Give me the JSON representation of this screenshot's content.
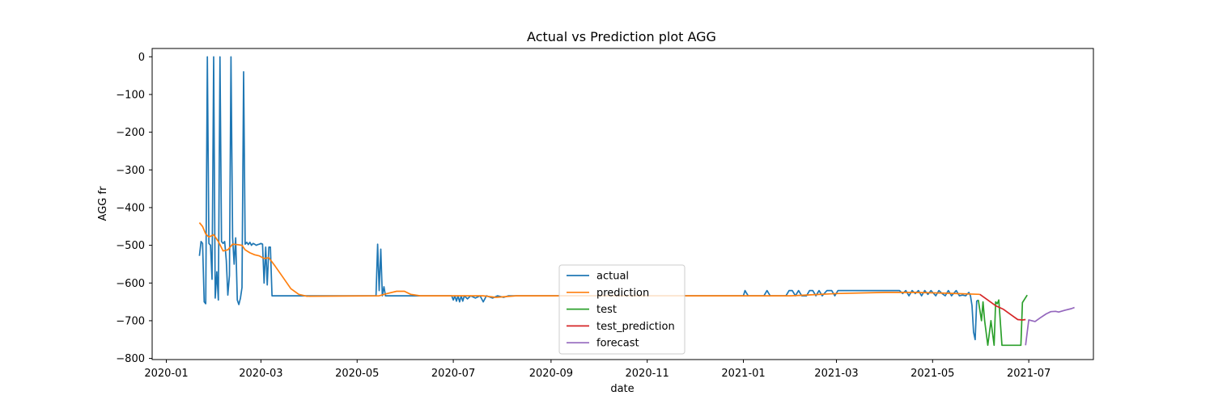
{
  "chart_data": {
    "type": "line",
    "title": "Actual vs Prediction plot AGG",
    "xlabel": "date",
    "ylabel": "AGG fr",
    "xlim": [
      "2019-12-23",
      "2021-08-11"
    ],
    "ylim": [
      -803,
      22
    ],
    "x_ticks": [
      "2020-01",
      "2020-03",
      "2020-05",
      "2020-07",
      "2020-09",
      "2020-11",
      "2021-01",
      "2021-03",
      "2021-05",
      "2021-07"
    ],
    "y_ticks": [
      0,
      -100,
      -200,
      -300,
      -400,
      -500,
      -600,
      -700,
      -800
    ],
    "y_tick_labels": [
      "0",
      "−100",
      "−200",
      "−300",
      "−400",
      "−500",
      "−600",
      "−700",
      "−800"
    ],
    "legend_position": "lower center",
    "series": [
      {
        "name": "actual",
        "color": "#1f77b4",
        "points": [
          [
            "2020-01-22",
            -528
          ],
          [
            "2020-01-23",
            -490
          ],
          [
            "2020-01-24",
            -495
          ],
          [
            "2020-01-25",
            -650
          ],
          [
            "2020-01-26",
            -655
          ],
          [
            "2020-01-27",
            0
          ],
          [
            "2020-01-28",
            -495
          ],
          [
            "2020-01-29",
            -500
          ],
          [
            "2020-01-30",
            -590
          ],
          [
            "2020-01-31",
            0
          ],
          [
            "2020-02-01",
            -640
          ],
          [
            "2020-02-02",
            -570
          ],
          [
            "2020-02-03",
            -645
          ],
          [
            "2020-02-04",
            0
          ],
          [
            "2020-02-05",
            -490
          ],
          [
            "2020-02-06",
            -495
          ],
          [
            "2020-02-07",
            -490
          ],
          [
            "2020-02-08",
            -540
          ],
          [
            "2020-02-09",
            -632
          ],
          [
            "2020-02-10",
            -580
          ],
          [
            "2020-02-11",
            0
          ],
          [
            "2020-02-12",
            -480
          ],
          [
            "2020-02-13",
            -550
          ],
          [
            "2020-02-14",
            -480
          ],
          [
            "2020-02-15",
            -645
          ],
          [
            "2020-02-16",
            -657
          ],
          [
            "2020-02-17",
            -640
          ],
          [
            "2020-02-18",
            -612
          ],
          [
            "2020-02-19",
            -40
          ],
          [
            "2020-02-20",
            -497
          ],
          [
            "2020-02-21",
            -492
          ],
          [
            "2020-02-22",
            -498
          ],
          [
            "2020-02-23",
            -492
          ],
          [
            "2020-02-24",
            -500
          ],
          [
            "2020-02-25",
            -495
          ],
          [
            "2020-02-26",
            -497
          ],
          [
            "2020-02-27",
            -500
          ],
          [
            "2020-02-28",
            -498
          ],
          [
            "2020-02-29",
            -497
          ],
          [
            "2020-03-01",
            -495
          ],
          [
            "2020-03-02",
            -497
          ],
          [
            "2020-03-03",
            -600
          ],
          [
            "2020-03-04",
            -505
          ],
          [
            "2020-03-05",
            -605
          ],
          [
            "2020-03-06",
            -505
          ],
          [
            "2020-03-07",
            -505
          ],
          [
            "2020-03-08",
            -634
          ],
          [
            "2020-05-13",
            -634
          ],
          [
            "2020-05-14",
            -497
          ],
          [
            "2020-05-15",
            -620
          ],
          [
            "2020-05-16",
            -510
          ],
          [
            "2020-05-17",
            -634
          ],
          [
            "2020-05-18",
            -610
          ],
          [
            "2020-05-19",
            -634
          ],
          [
            "2020-06-30",
            -634
          ],
          [
            "2020-07-01",
            -645
          ],
          [
            "2020-07-02",
            -634
          ],
          [
            "2020-07-03",
            -648
          ],
          [
            "2020-07-04",
            -634
          ],
          [
            "2020-07-05",
            -650
          ],
          [
            "2020-07-06",
            -634
          ],
          [
            "2020-07-07",
            -648
          ],
          [
            "2020-07-08",
            -634
          ],
          [
            "2020-07-10",
            -642
          ],
          [
            "2020-07-12",
            -634
          ],
          [
            "2020-07-15",
            -640
          ],
          [
            "2020-07-18",
            -634
          ],
          [
            "2020-07-20",
            -650
          ],
          [
            "2020-07-22",
            -634
          ],
          [
            "2020-07-26",
            -640
          ],
          [
            "2020-07-29",
            -634
          ],
          [
            "2020-08-02",
            -638
          ],
          [
            "2020-08-05",
            -634
          ],
          [
            "2021-01-01",
            -634
          ],
          [
            "2021-01-02",
            -620
          ],
          [
            "2021-01-04",
            -634
          ],
          [
            "2021-01-14",
            -634
          ],
          [
            "2021-01-16",
            -620
          ],
          [
            "2021-01-18",
            -634
          ],
          [
            "2021-01-28",
            -634
          ],
          [
            "2021-01-30",
            -620
          ],
          [
            "2021-02-01",
            -620
          ],
          [
            "2021-02-03",
            -634
          ],
          [
            "2021-02-05",
            -620
          ],
          [
            "2021-02-07",
            -634
          ],
          [
            "2021-02-10",
            -634
          ],
          [
            "2021-02-12",
            -620
          ],
          [
            "2021-02-14",
            -620
          ],
          [
            "2021-02-16",
            -634
          ],
          [
            "2021-02-18",
            -620
          ],
          [
            "2021-02-20",
            -634
          ],
          [
            "2021-02-23",
            -620
          ],
          [
            "2021-02-26",
            -620
          ],
          [
            "2021-02-28",
            -634
          ],
          [
            "2021-03-02",
            -620
          ],
          [
            "2021-03-05",
            -620
          ],
          [
            "2021-04-10",
            -620
          ],
          [
            "2021-04-12",
            -628
          ],
          [
            "2021-04-14",
            -620
          ],
          [
            "2021-04-16",
            -634
          ],
          [
            "2021-04-18",
            -620
          ],
          [
            "2021-04-20",
            -628
          ],
          [
            "2021-04-22",
            -620
          ],
          [
            "2021-04-24",
            -634
          ],
          [
            "2021-04-26",
            -620
          ],
          [
            "2021-04-28",
            -630
          ],
          [
            "2021-04-30",
            -620
          ],
          [
            "2021-05-03",
            -634
          ],
          [
            "2021-05-05",
            -620
          ],
          [
            "2021-05-07",
            -628
          ],
          [
            "2021-05-09",
            -634
          ],
          [
            "2021-05-11",
            -620
          ],
          [
            "2021-05-13",
            -634
          ],
          [
            "2021-05-16",
            -620
          ],
          [
            "2021-05-18",
            -634
          ],
          [
            "2021-05-20",
            -632
          ],
          [
            "2021-05-22",
            -634
          ],
          [
            "2021-05-24",
            -625
          ],
          [
            "2021-05-25",
            -634
          ],
          [
            "2021-05-26",
            -660
          ],
          [
            "2021-05-27",
            -730
          ],
          [
            "2021-05-28",
            -750
          ],
          [
            "2021-05-29",
            -648
          ],
          [
            "2021-05-30",
            -645
          ]
        ]
      },
      {
        "name": "prediction",
        "color": "#ff7f0e",
        "points": [
          [
            "2020-01-22",
            -440
          ],
          [
            "2020-01-24",
            -450
          ],
          [
            "2020-01-26",
            -470
          ],
          [
            "2020-01-28",
            -478
          ],
          [
            "2020-01-31",
            -472
          ],
          [
            "2020-02-03",
            -490
          ],
          [
            "2020-02-06",
            -515
          ],
          [
            "2020-02-09",
            -512
          ],
          [
            "2020-02-12",
            -497
          ],
          [
            "2020-02-15",
            -498
          ],
          [
            "2020-02-18",
            -500
          ],
          [
            "2020-02-20",
            -512
          ],
          [
            "2020-02-23",
            -520
          ],
          [
            "2020-02-26",
            -525
          ],
          [
            "2020-02-29",
            -528
          ],
          [
            "2020-03-03",
            -535
          ],
          [
            "2020-03-06",
            -533
          ],
          [
            "2020-03-10",
            -555
          ],
          [
            "2020-03-15",
            -585
          ],
          [
            "2020-03-20",
            -615
          ],
          [
            "2020-03-25",
            -630
          ],
          [
            "2020-03-30",
            -635
          ],
          [
            "2020-05-15",
            -634
          ],
          [
            "2020-05-20",
            -628
          ],
          [
            "2020-05-26",
            -622
          ],
          [
            "2020-05-31",
            -622
          ],
          [
            "2020-06-04",
            -630
          ],
          [
            "2020-06-10",
            -634
          ],
          [
            "2020-07-20",
            -634
          ],
          [
            "2020-07-28",
            -638
          ],
          [
            "2020-08-10",
            -634
          ],
          [
            "2021-01-31",
            -634
          ],
          [
            "2021-03-01",
            -628
          ],
          [
            "2021-04-01",
            -625
          ],
          [
            "2021-04-20",
            -625
          ],
          [
            "2021-05-10",
            -627
          ],
          [
            "2021-05-31",
            -630
          ]
        ]
      },
      {
        "name": "test",
        "color": "#2ca02c",
        "points": [
          [
            "2021-05-30",
            -645
          ],
          [
            "2021-06-01",
            -700
          ],
          [
            "2021-06-02",
            -650
          ],
          [
            "2021-06-03",
            -700
          ],
          [
            "2021-06-05",
            -765
          ],
          [
            "2021-06-07",
            -700
          ],
          [
            "2021-06-09",
            -765
          ],
          [
            "2021-06-10",
            -650
          ],
          [
            "2021-06-11",
            -655
          ],
          [
            "2021-06-12",
            -645
          ],
          [
            "2021-06-14",
            -765
          ],
          [
            "2021-06-26",
            -765
          ],
          [
            "2021-06-27",
            -652
          ],
          [
            "2021-06-30",
            -632
          ]
        ]
      },
      {
        "name": "test_prediction",
        "color": "#d62728",
        "points": [
          [
            "2021-05-31",
            -630
          ],
          [
            "2021-06-05",
            -645
          ],
          [
            "2021-06-10",
            -660
          ],
          [
            "2021-06-15",
            -670
          ],
          [
            "2021-06-20",
            -685
          ],
          [
            "2021-06-24",
            -697
          ],
          [
            "2021-06-27",
            -698
          ],
          [
            "2021-06-29",
            -697
          ]
        ]
      },
      {
        "name": "forecast",
        "color": "#9467bd",
        "points": [
          [
            "2021-06-29",
            -765
          ],
          [
            "2021-07-01",
            -698
          ],
          [
            "2021-07-03",
            -700
          ],
          [
            "2021-07-05",
            -702
          ],
          [
            "2021-07-08",
            -693
          ],
          [
            "2021-07-12",
            -682
          ],
          [
            "2021-07-15",
            -676
          ],
          [
            "2021-07-18",
            -675
          ],
          [
            "2021-07-20",
            -677
          ],
          [
            "2021-07-24",
            -672
          ],
          [
            "2021-07-28",
            -668
          ],
          [
            "2021-07-30",
            -665
          ]
        ]
      }
    ]
  }
}
